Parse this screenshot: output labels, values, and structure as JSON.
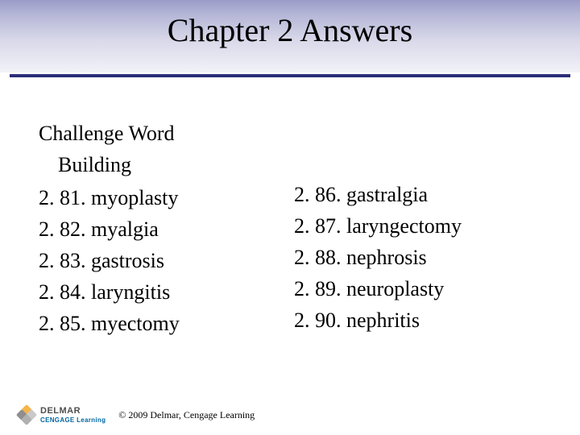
{
  "title": "Chapter 2 Answers",
  "section": {
    "line1": "Challenge Word",
    "line2": "Building"
  },
  "left_items": [
    "2. 81. myoplasty",
    "2. 82. myalgia",
    "2. 83. gastrosis",
    "2. 84. laryngitis",
    "2. 85. myectomy"
  ],
  "right_items": [
    "2. 86. gastralgia",
    "2. 87. laryngectomy",
    "2. 88. nephrosis",
    "2. 89. neuroplasty",
    "2. 90. nephritis"
  ],
  "logo": {
    "brand": "DELMAR",
    "sub": "CENGAGE Learning"
  },
  "copyright": "© 2009 Delmar, Cengage Learning",
  "colors": {
    "divider": "#2b2e78",
    "band_top": "#9a9cc9",
    "text": "#000000"
  },
  "typography": {
    "title_fontsize": 40,
    "body_fontsize": 26,
    "copyright_fontsize": 12
  }
}
